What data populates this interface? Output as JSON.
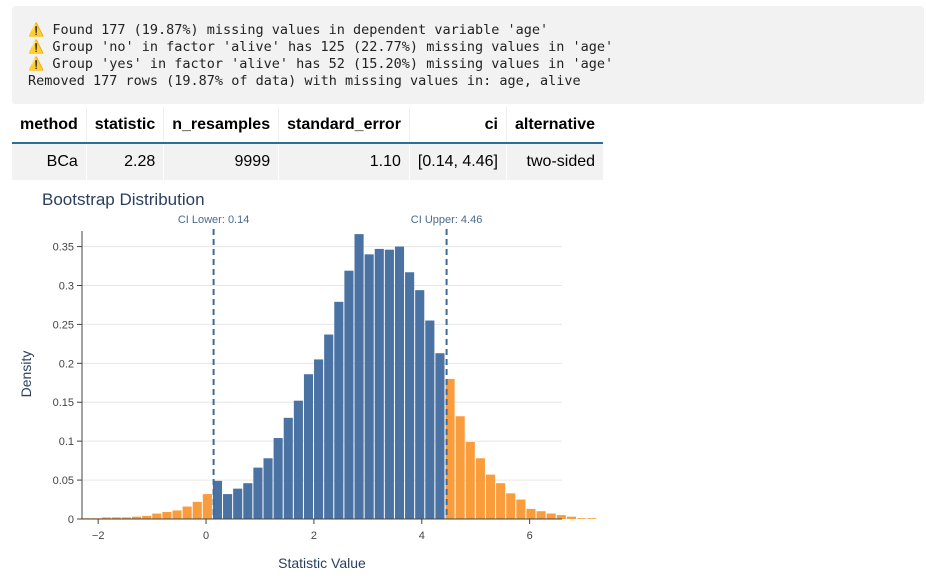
{
  "log": {
    "lines": [
      {
        "icon": "⚠️",
        "text": " Found 177 (19.87%) missing values in dependent variable 'age'"
      },
      {
        "icon": "⚠️",
        "text": " Group 'no' in factor 'alive' has 125 (22.77%) missing values in 'age'"
      },
      {
        "icon": "⚠️",
        "text": " Group 'yes' in factor 'alive' has 52 (15.20%) missing values in 'age'"
      },
      {
        "icon": "",
        "text": "Removed 177 rows (19.87% of data) with missing values in: age, alive"
      }
    ]
  },
  "table": {
    "headers": [
      "method",
      "statistic",
      "n_resamples",
      "standard_error",
      "ci",
      "alternative"
    ],
    "row": [
      "BCa",
      "2.28",
      "9999",
      "1.10",
      "[0.14, 4.46]",
      "two-sided"
    ]
  },
  "chart_data": {
    "type": "bar",
    "title": "Bootstrap Distribution",
    "xlabel": "Statistic Value",
    "ylabel": "Density",
    "xlim": [
      -2.3,
      6.6
    ],
    "ylim": [
      0,
      0.37
    ],
    "xticks": [
      -2,
      0,
      2,
      4,
      6
    ],
    "xtick_labels": [
      "−2",
      "0",
      "2",
      "4",
      "6"
    ],
    "yticks": [
      0,
      0.05,
      0.1,
      0.15,
      0.2,
      0.25,
      0.3,
      0.35
    ],
    "ytick_labels": [
      "0",
      "0.05",
      "0.1",
      "0.15",
      "0.2",
      "0.25",
      "0.3",
      "0.35"
    ],
    "grid": true,
    "bin_width": 0.1875,
    "bin_start": -2.31,
    "densities": [
      0.001,
      0.001,
      0.002,
      0.002,
      0.002,
      0.003,
      0.004,
      0.007,
      0.009,
      0.011,
      0.016,
      0.022,
      0.032,
      0.049,
      0.032,
      0.039,
      0.046,
      0.066,
      0.078,
      0.104,
      0.13,
      0.152,
      0.186,
      0.205,
      0.237,
      0.279,
      0.319,
      0.366,
      0.34,
      0.347,
      0.346,
      0.35,
      0.317,
      0.294,
      0.255,
      0.213,
      0.18,
      0.132,
      0.099,
      0.078,
      0.057,
      0.046,
      0.033,
      0.025,
      0.013,
      0.01,
      0.007,
      0.005,
      0.003,
      0.001,
      0.001
    ],
    "ci_lower": 0.14,
    "ci_upper": 4.46,
    "ci_lower_label": "CI Lower: 0.14",
    "ci_upper_label": "CI Upper: 4.46",
    "inside_color": "#4a72a3",
    "outside_color": "#f89c3c",
    "ci_line_color": "#3f6a99"
  }
}
